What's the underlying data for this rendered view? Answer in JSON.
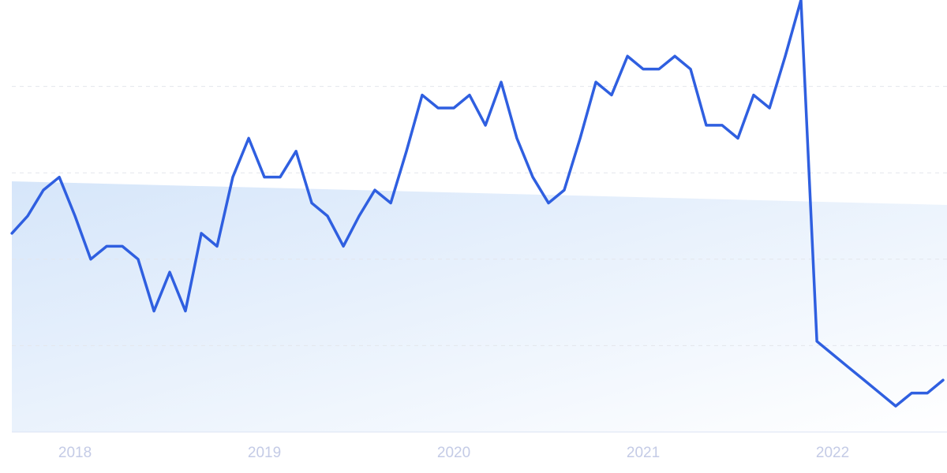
{
  "chart_data": {
    "type": "line",
    "x": [
      2017.667,
      2017.75,
      2017.833,
      2017.917,
      2018,
      2018.083,
      2018.167,
      2018.25,
      2018.333,
      2018.417,
      2018.5,
      2018.583,
      2018.667,
      2018.75,
      2018.833,
      2018.917,
      2019,
      2019.083,
      2019.167,
      2019.25,
      2019.333,
      2019.417,
      2019.5,
      2019.583,
      2019.667,
      2019.75,
      2019.833,
      2019.917,
      2020,
      2020.083,
      2020.167,
      2020.25,
      2020.333,
      2020.417,
      2020.5,
      2020.583,
      2020.667,
      2020.75,
      2020.833,
      2020.917,
      2021,
      2021.083,
      2021.167,
      2021.25,
      2021.333,
      2021.417,
      2021.5,
      2021.583,
      2021.667,
      2021.75,
      2021.833,
      2021.917,
      2022,
      2022.083,
      2022.167,
      2022.25,
      2022.333,
      2022.417,
      2022.5,
      2022.583
    ],
    "series": [
      {
        "color": "#2f5fe0",
        "values": [
          46,
          50,
          56,
          59,
          50,
          40,
          43,
          43,
          40,
          28,
          37,
          28,
          46,
          43,
          59,
          68,
          59,
          59,
          65,
          53,
          50,
          43,
          50,
          56,
          53,
          65,
          78,
          75,
          75,
          78,
          71,
          81,
          68,
          59,
          53,
          56,
          68,
          81,
          78,
          87,
          84,
          84,
          87,
          84,
          71,
          71,
          68,
          78,
          75,
          87,
          100,
          21,
          18,
          15,
          12,
          9,
          6,
          9,
          9,
          12
        ]
      }
    ],
    "xlim": [
      2017.604,
      2022.604
    ],
    "xticks": [
      2018,
      2019,
      2020,
      2021,
      2022
    ],
    "ylim": [
      0,
      100
    ],
    "yticks": [
      20,
      40,
      60,
      80
    ],
    "grid": true
  }
}
